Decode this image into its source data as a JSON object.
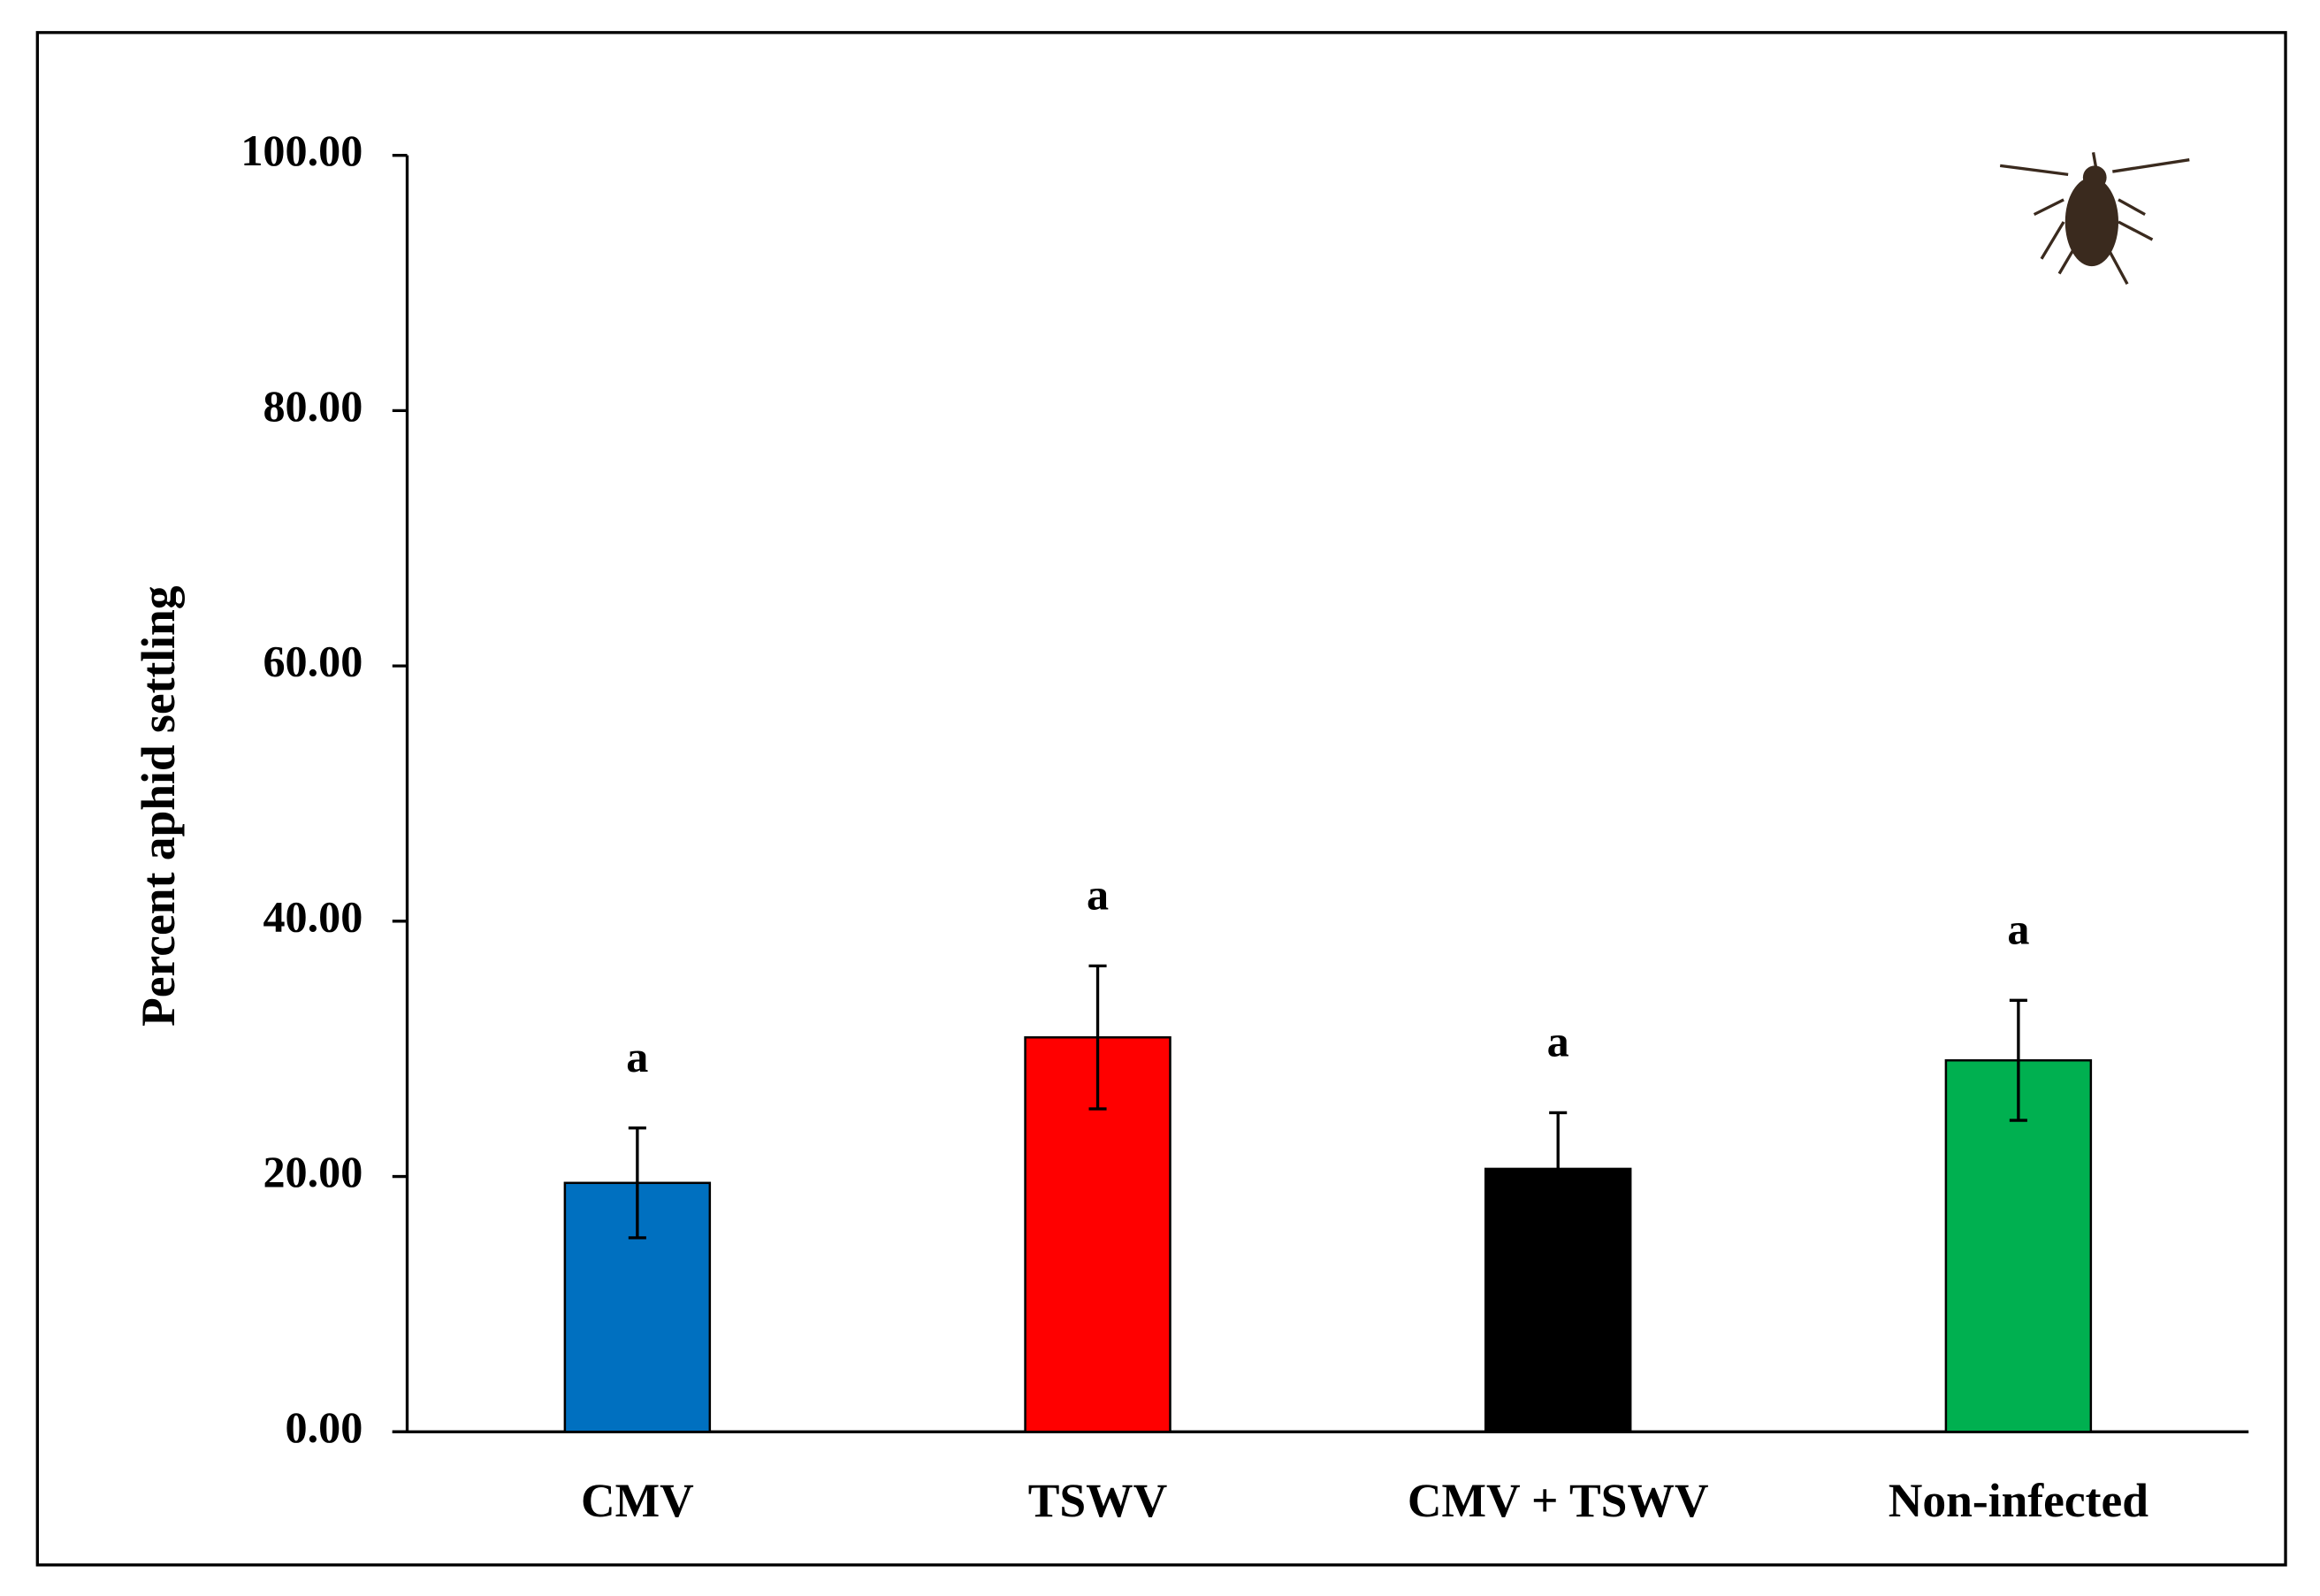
{
  "chart_data": {
    "type": "bar",
    "ylabel": "Percent aphid settling",
    "categories": [
      "CMV",
      "TSWV",
      "CMV + TSWV",
      "Non-infected"
    ],
    "values": [
      19.5,
      30.9,
      20.6,
      29.1
    ],
    "errors": [
      4.3,
      5.6,
      4.4,
      4.7
    ],
    "colors": [
      "#0070c0",
      "#ff0000",
      "#000000",
      "#00b050"
    ],
    "annotations": [
      "a",
      "a",
      "a",
      "a"
    ],
    "ylim": [
      0,
      100
    ],
    "yticks": [
      {
        "value": 0,
        "label": "0.00"
      },
      {
        "value": 20,
        "label": "20.00"
      },
      {
        "value": 40,
        "label": "40.00"
      },
      {
        "value": 60,
        "label": "60.00"
      },
      {
        "value": 80,
        "label": "80.00"
      },
      {
        "value": 100,
        "label": "100.00"
      }
    ],
    "grid": false
  }
}
